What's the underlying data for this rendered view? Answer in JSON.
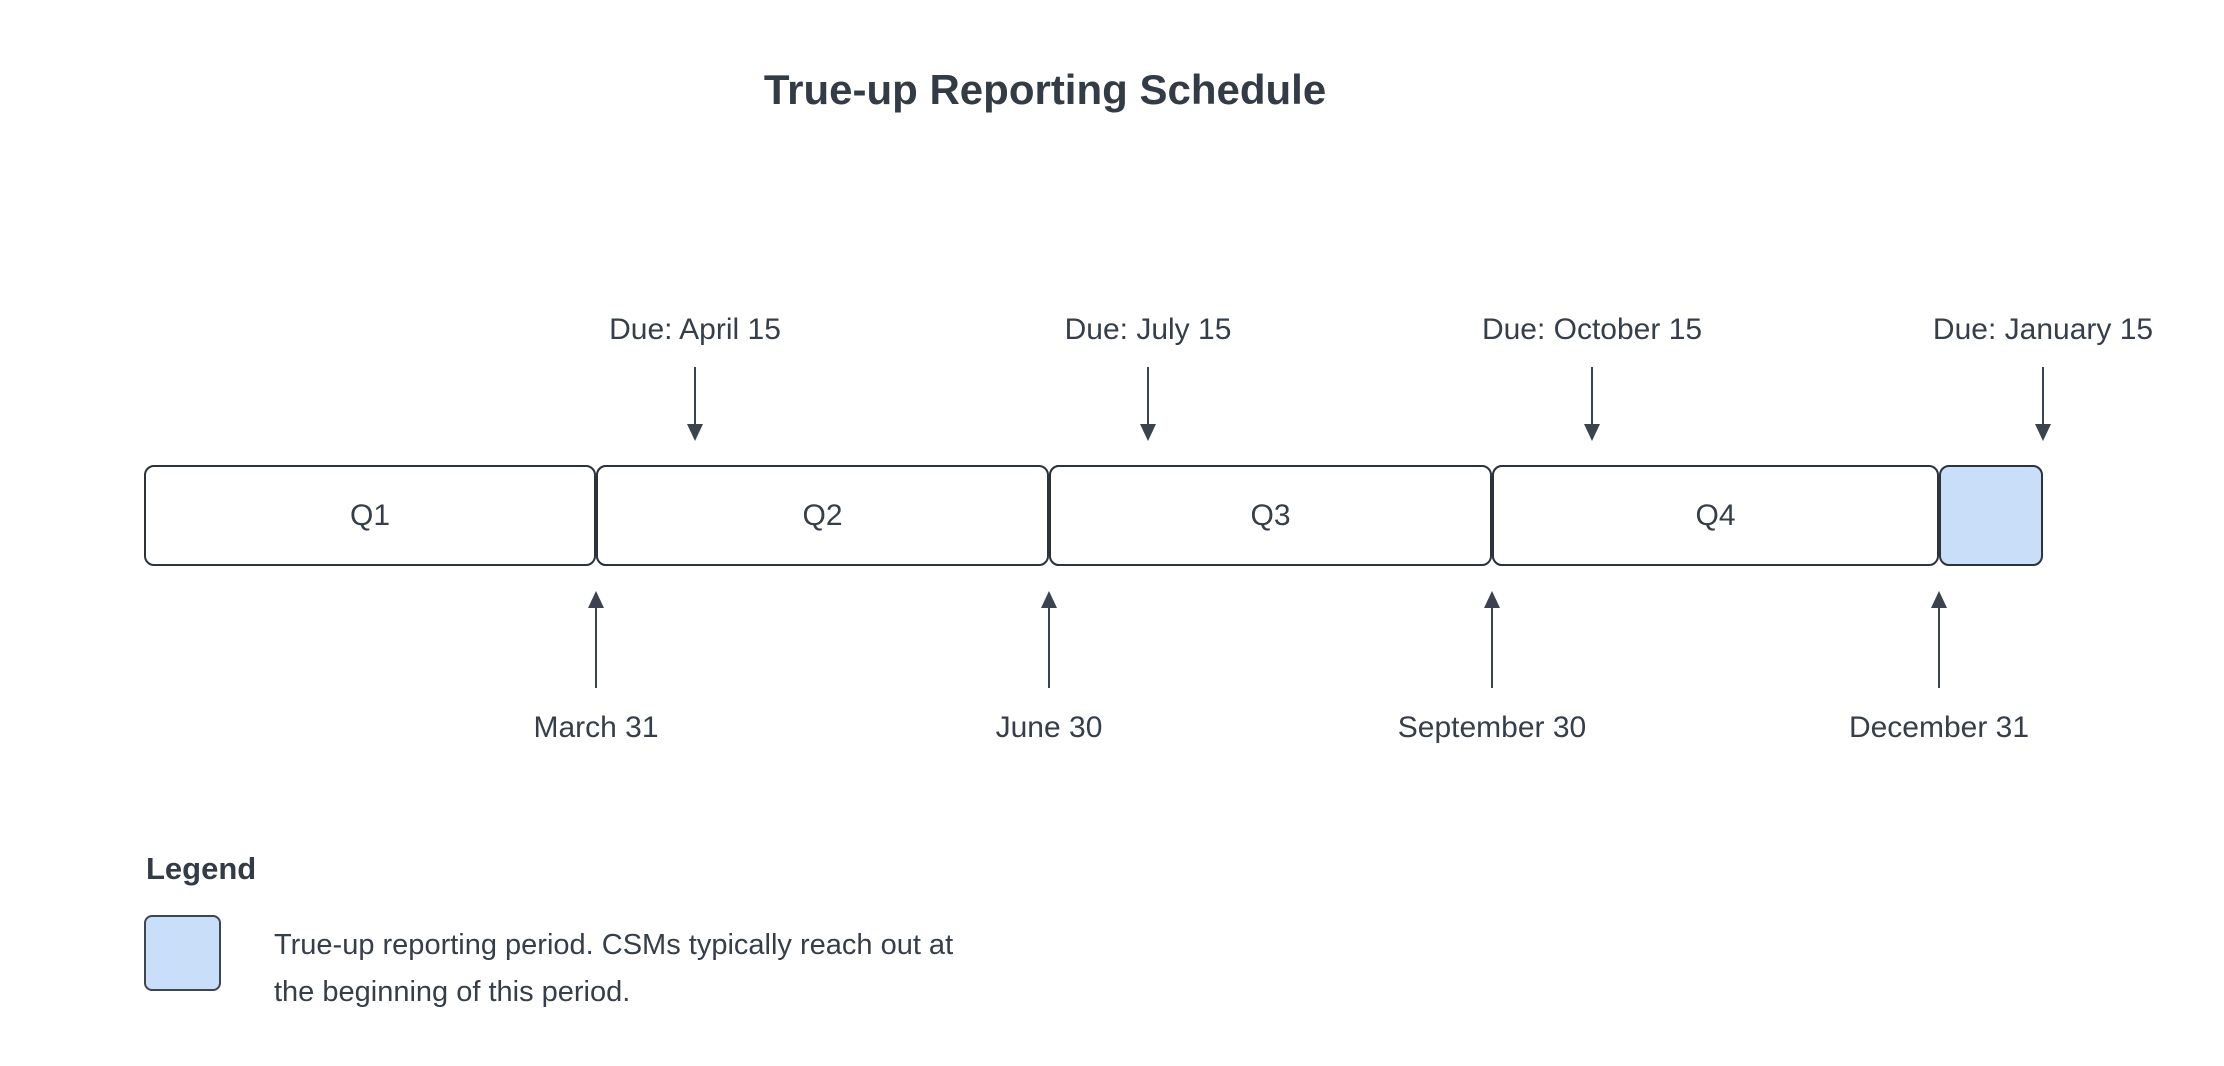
{
  "title": "True-up Reporting Schedule",
  "timeline": {
    "quarters": [
      {
        "label": "Q1",
        "end_date": "March 31",
        "due": "Due: April 15"
      },
      {
        "label": "Q2",
        "end_date": "June 30",
        "due": "Due: July 15"
      },
      {
        "label": "Q3",
        "end_date": "September 30",
        "due": "Due: October 15"
      },
      {
        "label": "Q4",
        "end_date": "December 31",
        "due": "Due: January 15"
      }
    ]
  },
  "legend": {
    "heading": "Legend",
    "description_lines": [
      "True-up reporting period. CSMs typically reach out at",
      "the beginning of this period."
    ]
  },
  "colors": {
    "trueup_fill": "#c9def9",
    "stroke": "#2b333d",
    "text": "#353e49",
    "background": "#ffffff"
  }
}
